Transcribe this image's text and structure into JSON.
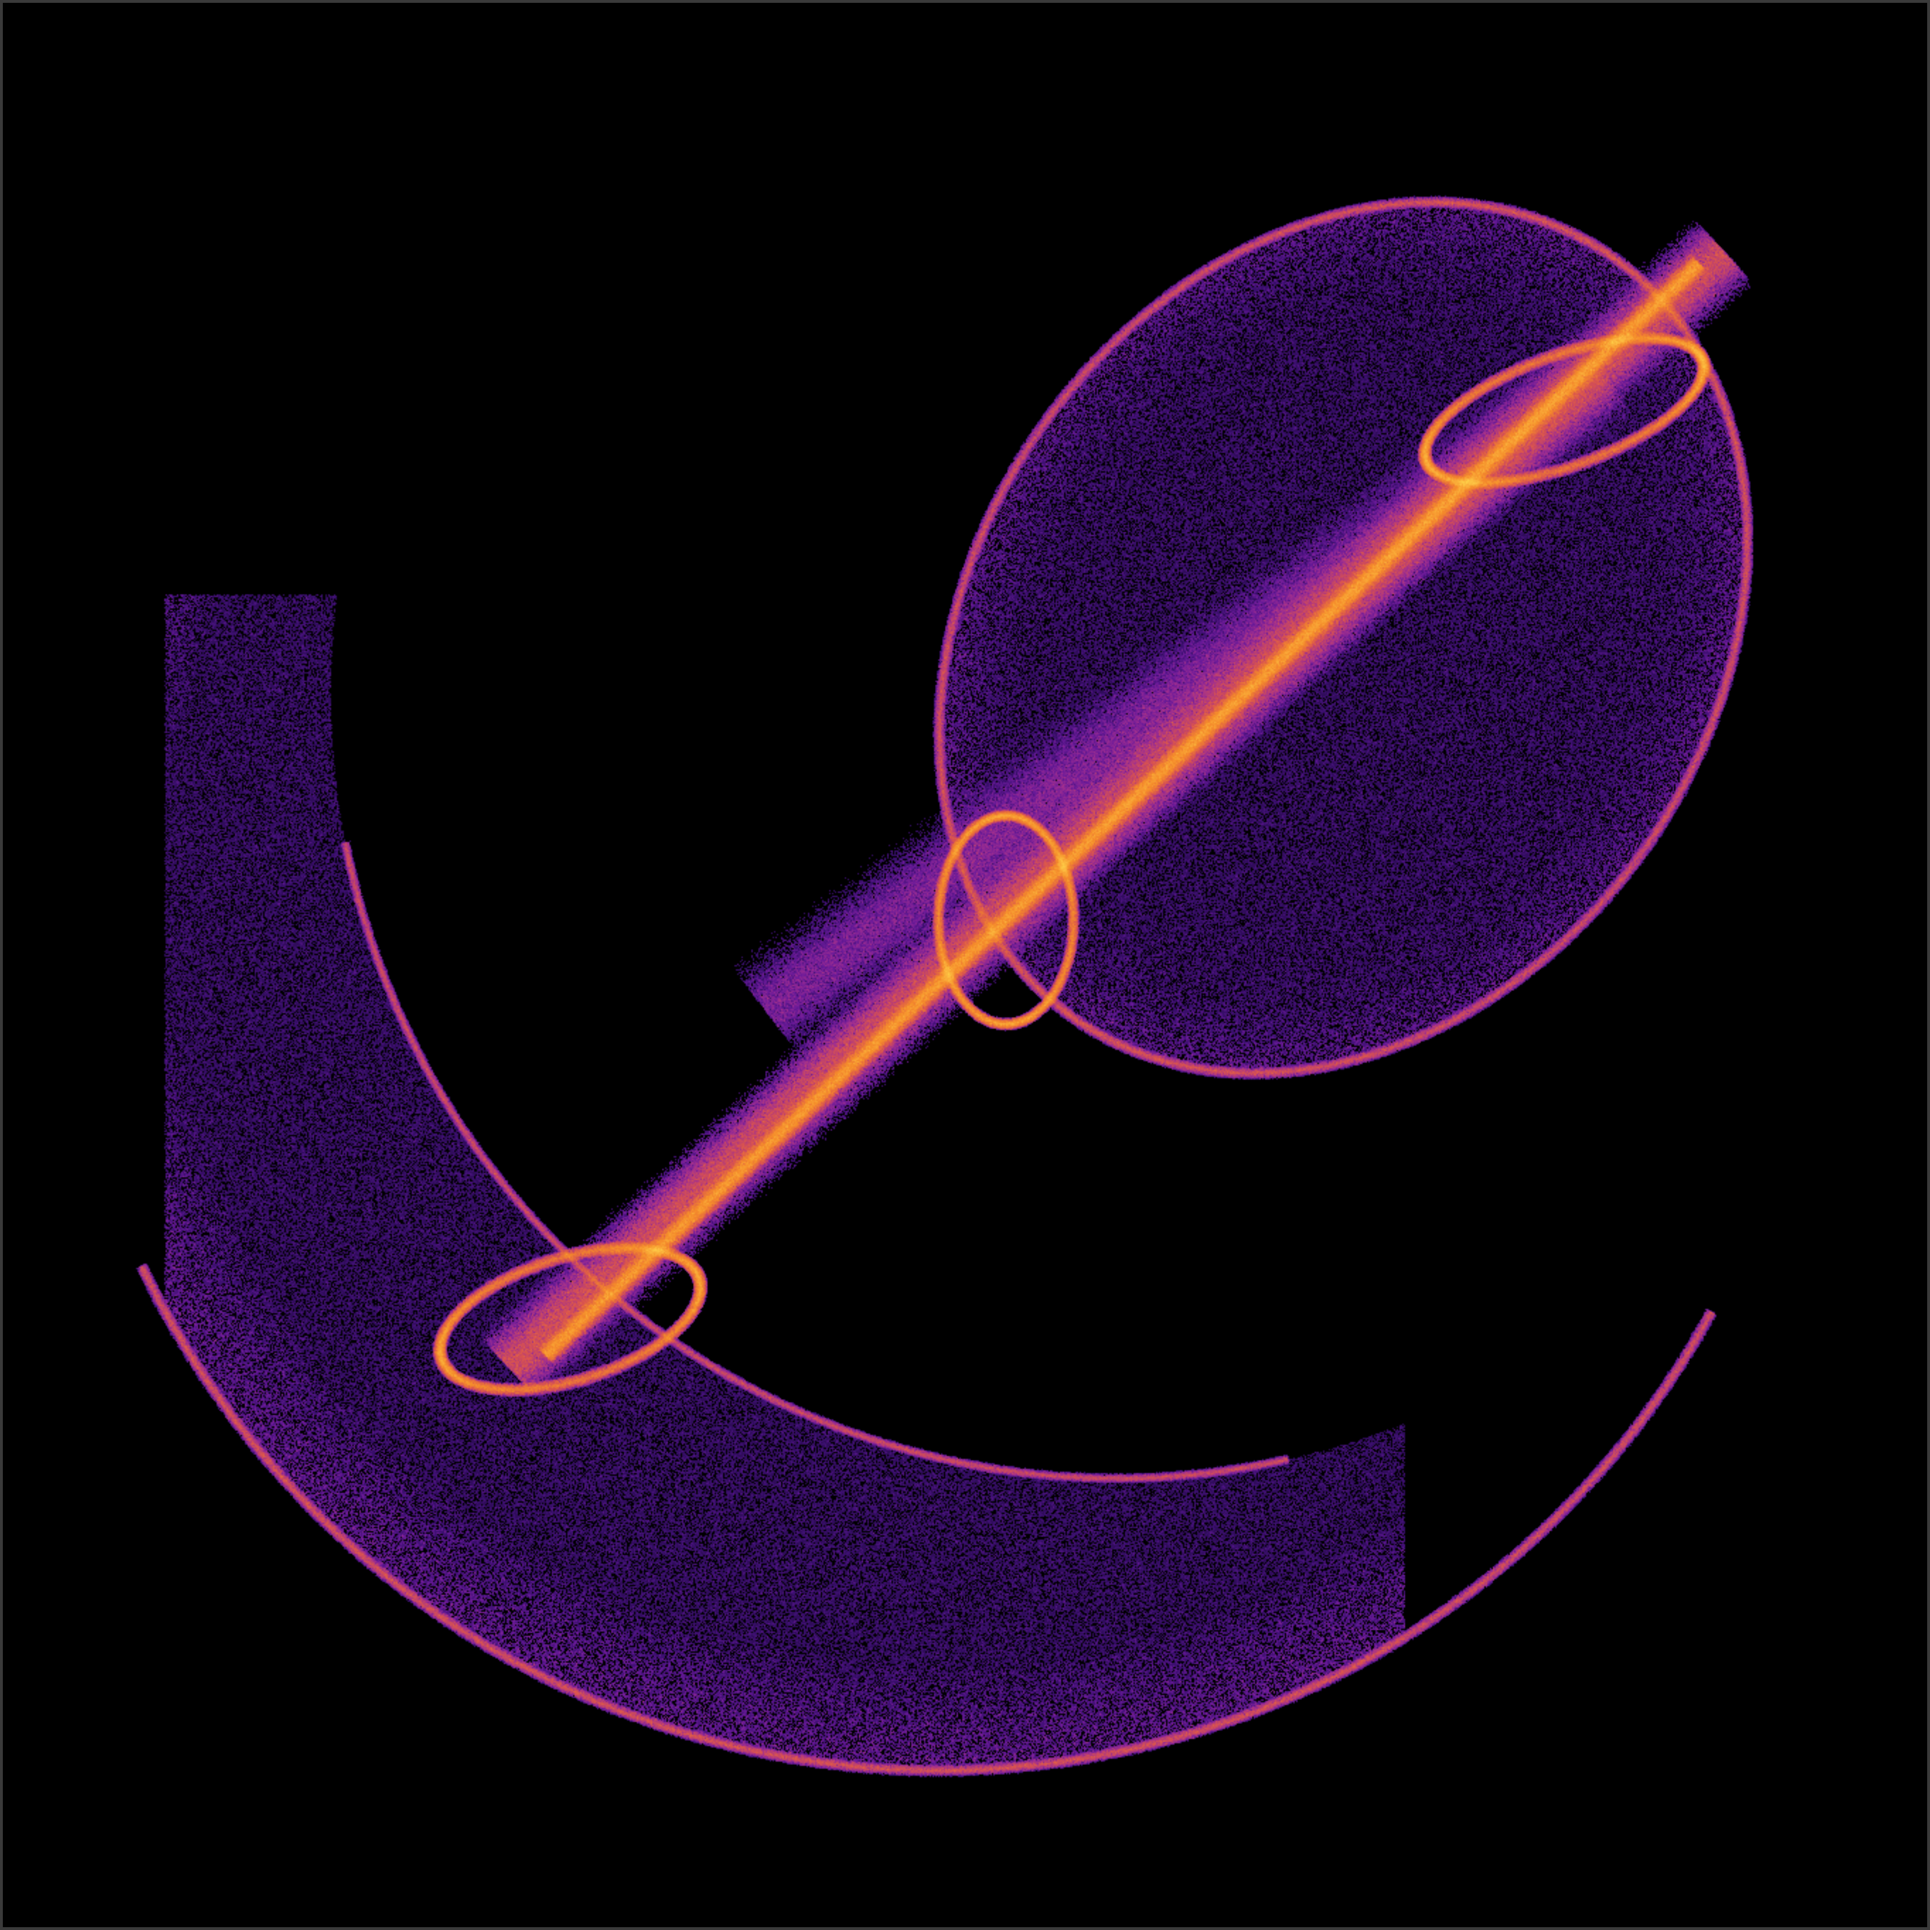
{
  "image": {
    "subject": "strange-attractor",
    "background_color": "#000000",
    "frame_color": "#3a3a3a",
    "palette": [
      "#1a0533",
      "#3b0f6f",
      "#6a1a9a",
      "#a12f8f",
      "#d9534f",
      "#f58b2a",
      "#ffd24a"
    ]
  }
}
